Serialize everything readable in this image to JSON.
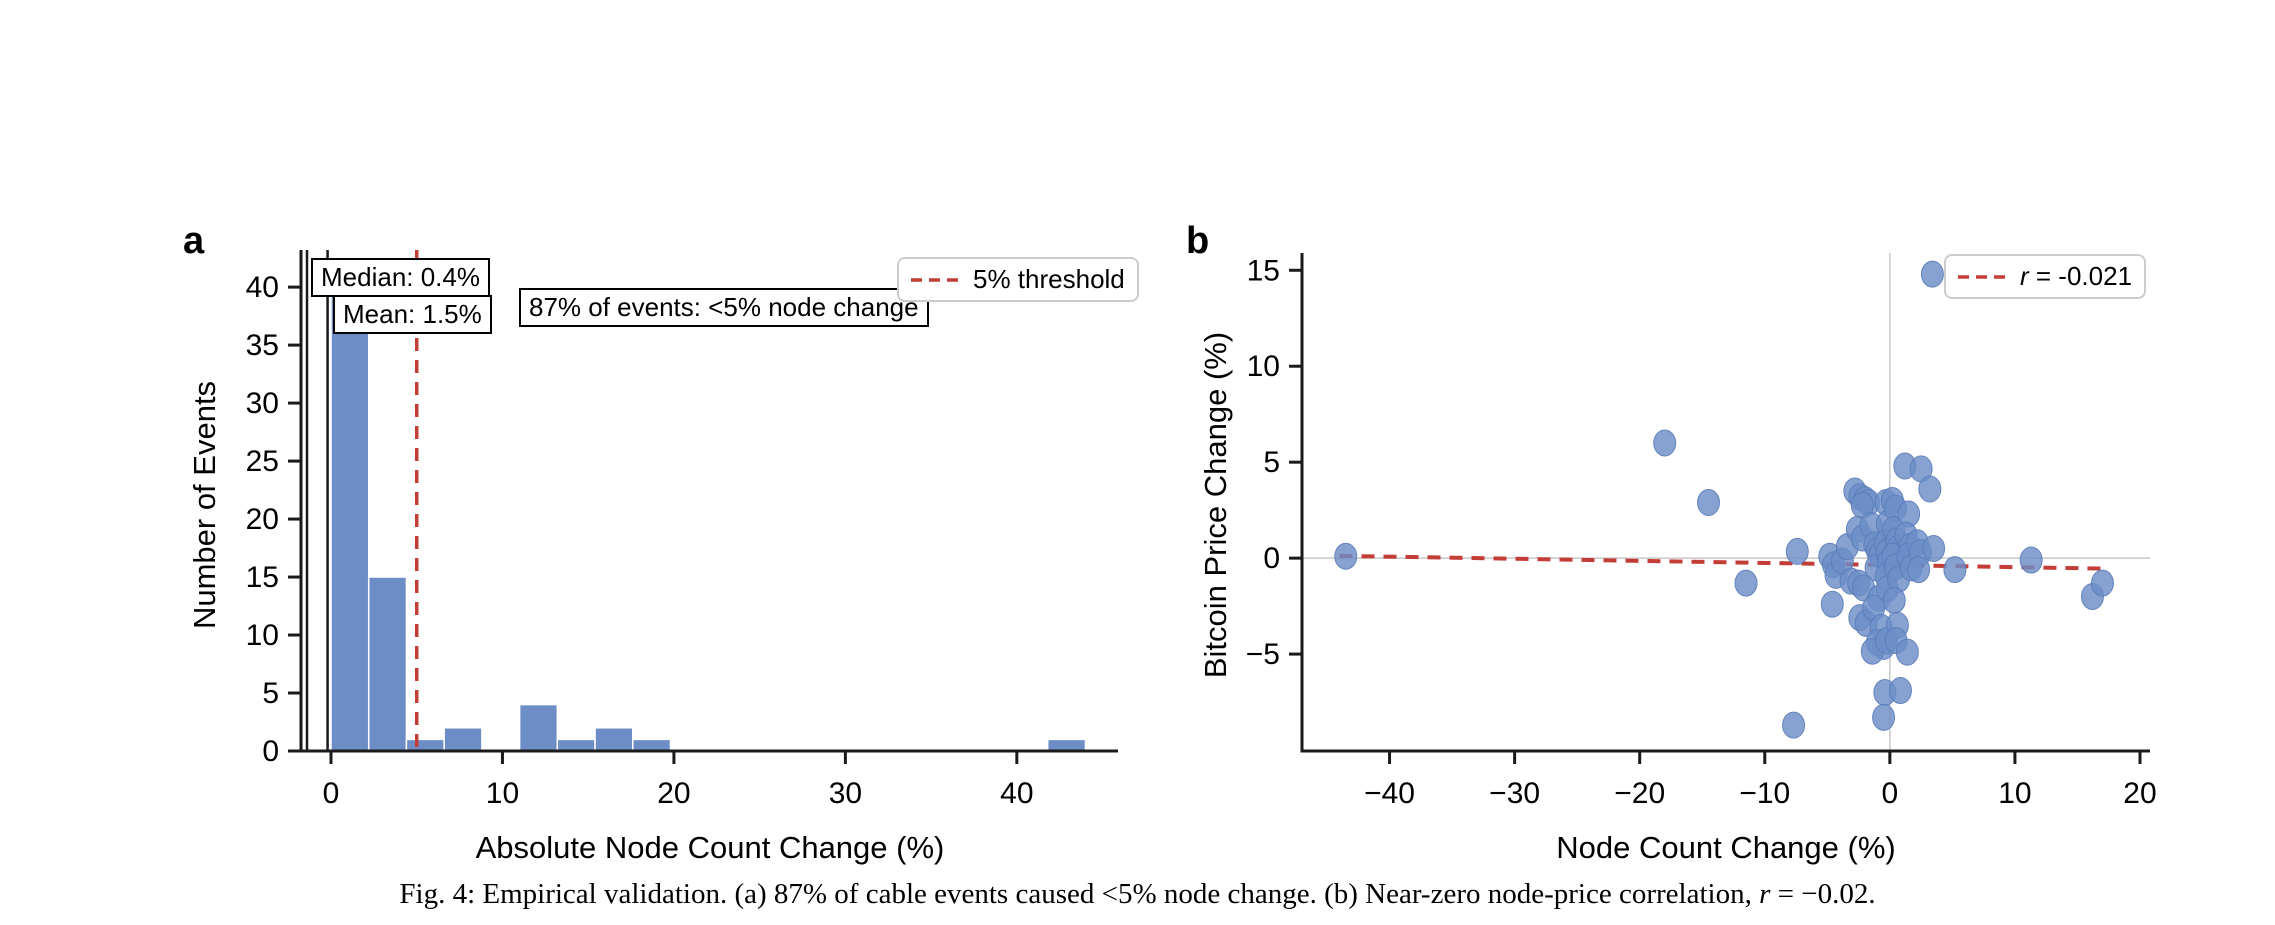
{
  "figure": {
    "panel_a_letter": "a",
    "panel_b_letter": "b",
    "caption_prefix": "Fig. 4: Empirical validation. (a) 87% of cable events caused <5% node change. (b) Near-zero node-price correlation, ",
    "caption_r": "r",
    "caption_suffix": " = −0.02."
  },
  "colors": {
    "bar": "#6d8dc7",
    "scatter": "#6d8dc7",
    "scatter_edge": "#5a7cb8",
    "red": "#c33d37",
    "axis": "#1a1a1a",
    "gray_line": "#c8c8c8",
    "legend_border": "#cccccc"
  },
  "chart_data": [
    {
      "type": "bar",
      "panel": "a",
      "xlabel": "Absolute Node Count Change (%)",
      "ylabel": "Number of Events",
      "bin_start": 0,
      "bin_width": 2.2,
      "values": [
        40,
        15,
        1,
        2,
        0,
        4,
        1,
        2,
        1,
        0,
        0,
        0,
        0,
        0,
        0,
        0,
        0,
        0,
        0,
        1
      ],
      "xlim": [
        -1.75,
        45.9
      ],
      "ylim": [
        0,
        43.2
      ],
      "xticks": [
        0,
        10,
        20,
        30,
        40
      ],
      "xtick_labels": [
        "0",
        "10",
        "20",
        "30",
        "40"
      ],
      "yticks": [
        0,
        5,
        10,
        15,
        20,
        25,
        30,
        35,
        40
      ],
      "ytick_labels": [
        "0",
        "5",
        "10",
        "15",
        "20",
        "25",
        "30",
        "35",
        "40"
      ],
      "median_value": 0.4,
      "median_label": "Median: 0.4%",
      "median_line_x": -1.4,
      "mean_value": 1.5,
      "mean_label": "Mean: 1.5%",
      "mean_line_x": -0.2,
      "threshold_x": 5,
      "threshold_legend": "5% threshold",
      "annotation": "87% of events: <5% node change"
    },
    {
      "type": "scatter",
      "panel": "b",
      "xlabel": "Node Count Change (%)",
      "ylabel": "Bitcoin Price Change (%)",
      "xlim": [
        -47,
        20.8
      ],
      "ylim": [
        -10.05,
        15.9
      ],
      "xticks": [
        -40,
        -30,
        -20,
        -10,
        0,
        10,
        20
      ],
      "xtick_labels": [
        "−40",
        "−30",
        "−20",
        "−10",
        "0",
        "10",
        "20"
      ],
      "yticks": [
        -5,
        0,
        5,
        10,
        15
      ],
      "ytick_labels": [
        "−5",
        "0",
        "5",
        "10",
        "15"
      ],
      "correlation": -0.021,
      "legend_r": "r",
      "legend_value": " = -0.021",
      "trend": {
        "x1": -44,
        "y1": 0.12,
        "x2": 17.5,
        "y2": -0.55
      },
      "zero_lines": true,
      "points": [
        [
          -43.5,
          0.1
        ],
        [
          -18,
          6.0
        ],
        [
          -14.5,
          2.9
        ],
        [
          -11.5,
          -1.3
        ],
        [
          -7.7,
          -8.7
        ],
        [
          -7.4,
          0.35
        ],
        [
          -4.8,
          0.1
        ],
        [
          -4.5,
          -0.35
        ],
        [
          -4.3,
          -0.9
        ],
        [
          -4.6,
          -2.4
        ],
        [
          -3.8,
          -0.15
        ],
        [
          -3.4,
          0.6
        ],
        [
          -3.1,
          -1.2
        ],
        [
          -2.8,
          3.5
        ],
        [
          -2.4,
          3.2
        ],
        [
          -2.0,
          3.05
        ],
        [
          -1.7,
          2.9
        ],
        [
          -2.2,
          2.75
        ],
        [
          -2.6,
          1.5
        ],
        [
          -2.2,
          1.05
        ],
        [
          -2.5,
          -1.3
        ],
        [
          -2.1,
          -1.55
        ],
        [
          -2.4,
          -3.1
        ],
        [
          -1.9,
          -3.4
        ],
        [
          -1.5,
          1.7
        ],
        [
          -1.2,
          0.7
        ],
        [
          -1.0,
          0.4
        ],
        [
          -0.8,
          0.15
        ],
        [
          -1.1,
          -0.5
        ],
        [
          -0.9,
          -2.1
        ],
        [
          -1.3,
          -2.6
        ],
        [
          -0.7,
          -3.6
        ],
        [
          -1.0,
          -4.4
        ],
        [
          -0.5,
          -4.6
        ],
        [
          -1.4,
          -4.85
        ],
        [
          -0.3,
          2.9
        ],
        [
          -0.2,
          1.8
        ],
        [
          -0.35,
          0.8
        ],
        [
          -0.2,
          0.3
        ],
        [
          -0.1,
          -0.2
        ],
        [
          -0.3,
          -0.95
        ],
        [
          -0.2,
          -1.6
        ],
        [
          -0.25,
          -4.3
        ],
        [
          -0.4,
          -7.0
        ],
        [
          -0.5,
          -8.3
        ],
        [
          0.2,
          3.0
        ],
        [
          0.45,
          2.6
        ],
        [
          0.3,
          1.5
        ],
        [
          0.55,
          0.9
        ],
        [
          0.65,
          0.5
        ],
        [
          0.25,
          0.1
        ],
        [
          0.45,
          -0.45
        ],
        [
          0.7,
          -1.1
        ],
        [
          0.35,
          -2.2
        ],
        [
          0.6,
          -3.5
        ],
        [
          0.5,
          -4.3
        ],
        [
          0.85,
          -6.9
        ],
        [
          1.2,
          4.8
        ],
        [
          1.5,
          2.3
        ],
        [
          1.3,
          1.2
        ],
        [
          1.6,
          0.6
        ],
        [
          1.45,
          0.1
        ],
        [
          1.7,
          -0.5
        ],
        [
          1.4,
          -4.9
        ],
        [
          2.5,
          4.65
        ],
        [
          2.2,
          0.8
        ],
        [
          2.45,
          0.3
        ],
        [
          2.3,
          -0.6
        ],
        [
          3.2,
          3.6
        ],
        [
          3.4,
          14.8
        ],
        [
          3.5,
          0.5
        ],
        [
          5.2,
          -0.6
        ],
        [
          11.3,
          -0.1
        ],
        [
          16.2,
          -2.0
        ],
        [
          17.0,
          -1.3
        ]
      ]
    }
  ]
}
